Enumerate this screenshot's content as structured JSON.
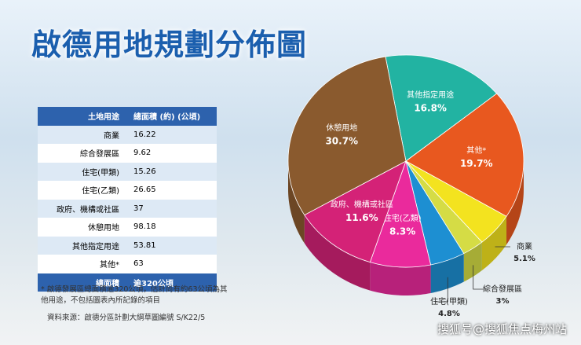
{
  "title": "啟德用地規劃分佈圖",
  "table": {
    "header": [
      "土地用途",
      "總面積 (約) (公頃)"
    ],
    "rows": [
      [
        "商業",
        16.22
      ],
      [
        "綜合發展區",
        9.62
      ],
      [
        "住宅(甲類)",
        15.26
      ],
      [
        "住宅(乙類)",
        26.65
      ],
      [
        "政府、機構或社區",
        37
      ],
      [
        "休憩用地",
        98.18
      ],
      [
        "其他指定用途",
        53.81
      ],
      [
        "其他*",
        63
      ]
    ],
    "footer": [
      "總面積",
      "逾320公頃"
    ]
  },
  "note": "* 啟德發展區總面積逾320公頃，估計尚有約63公頃為其他用途，不包括圖表內所記錄的項目",
  "source": "資料來源：啟德分區計劃大綱草圖編號 S/K22/5",
  "watermark": "搜狐号@搜狐焦点梅州站",
  "chart_data": {
    "type": "pie",
    "categories": [
      "其他指定用途",
      "其他*",
      "商業",
      "綜合發展區",
      "住宅(甲類)",
      "住宅(乙類)",
      "政府、機構或社區",
      "休憩用地"
    ],
    "values": [
      16.8,
      19.7,
      5.1,
      3,
      4.8,
      8.3,
      11.6,
      30.7
    ],
    "value_labels": [
      "16.8%",
      "19.7%",
      "5.1%",
      "3%",
      "4.8%",
      "8.3%",
      "11.6%",
      "30.7%"
    ],
    "colors": [
      "#22b3a2",
      "#e8581f",
      "#f3e31f",
      "#d5dc45",
      "#1d8fd2",
      "#ea2a9c",
      "#d42277",
      "#8a5a2e"
    ]
  }
}
